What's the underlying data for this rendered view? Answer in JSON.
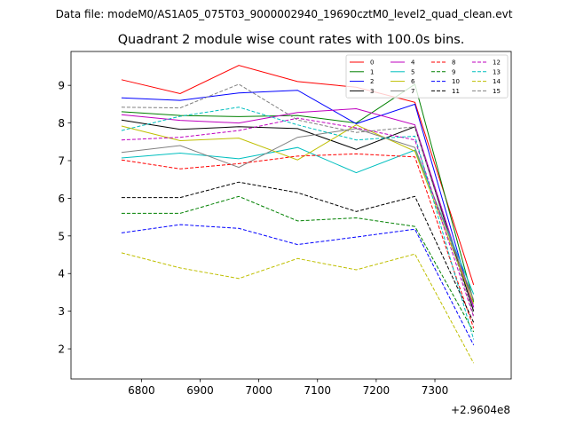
{
  "suptitle": "Data file: modeM0/AS1A05_075T03_9000002940_19690cztM0_level2_quad_clean.evt",
  "chart_data": {
    "type": "line",
    "title": "Quadrant 2 module wise count rates with 100.0s bins.",
    "xlabel": "",
    "ylabel": "",
    "x_offset_label": "+2.9604e8",
    "x": [
      6766,
      6866,
      6966,
      7066,
      7166,
      7266,
      7366
    ],
    "xlim": [
      6680,
      7430
    ],
    "ylim": [
      1.2,
      9.9
    ],
    "xticks": [
      6800,
      6900,
      7000,
      7100,
      7200,
      7300
    ],
    "yticks": [
      2,
      3,
      4,
      5,
      6,
      7,
      8,
      9
    ],
    "legend_placement": "top-right",
    "legend_ncol": 4,
    "series": [
      {
        "name": "0",
        "color": "#ff0000",
        "dashed": false,
        "values": [
          9.15,
          8.78,
          9.53,
          9.1,
          8.95,
          8.55,
          3.7
        ]
      },
      {
        "name": "1",
        "color": "#008000",
        "dashed": false,
        "values": [
          8.3,
          8.2,
          8.17,
          8.2,
          8.0,
          9.03,
          3.25
        ]
      },
      {
        "name": "2",
        "color": "#0000ff",
        "dashed": false,
        "values": [
          8.67,
          8.6,
          8.8,
          8.87,
          7.98,
          8.5,
          3.1
        ]
      },
      {
        "name": "3",
        "color": "#000000",
        "dashed": false,
        "values": [
          8.08,
          7.83,
          7.9,
          7.85,
          7.3,
          7.9,
          3.0
        ]
      },
      {
        "name": "4",
        "color": "#bf00bf",
        "dashed": false,
        "values": [
          8.22,
          8.07,
          8.0,
          8.28,
          8.38,
          7.95,
          3.1
        ]
      },
      {
        "name": "5",
        "color": "#00bfbf",
        "dashed": false,
        "values": [
          7.07,
          7.2,
          7.05,
          7.35,
          6.68,
          7.28,
          3.45
        ]
      },
      {
        "name": "6",
        "color": "#bfbf00",
        "dashed": false,
        "values": [
          7.92,
          7.53,
          7.6,
          7.02,
          7.95,
          7.25,
          3.2
        ]
      },
      {
        "name": "7",
        "color": "#808080",
        "dashed": false,
        "values": [
          7.22,
          7.4,
          6.82,
          7.62,
          7.85,
          7.35,
          3.3
        ]
      },
      {
        "name": "8",
        "color": "#ff0000",
        "dashed": true,
        "values": [
          7.02,
          6.78,
          6.92,
          7.12,
          7.18,
          7.1,
          2.55
        ]
      },
      {
        "name": "9",
        "color": "#008000",
        "dashed": true,
        "values": [
          5.6,
          5.6,
          6.05,
          5.4,
          5.48,
          5.25,
          2.45
        ]
      },
      {
        "name": "10",
        "color": "#0000ff",
        "dashed": true,
        "values": [
          5.08,
          5.3,
          5.2,
          4.77,
          4.97,
          5.18,
          2.1
        ]
      },
      {
        "name": "11",
        "color": "#000000",
        "dashed": true,
        "values": [
          6.02,
          6.02,
          6.43,
          6.15,
          5.65,
          6.05,
          2.7
        ]
      },
      {
        "name": "12",
        "color": "#bf00bf",
        "dashed": true,
        "values": [
          7.55,
          7.62,
          7.8,
          8.13,
          7.87,
          7.55,
          2.85
        ]
      },
      {
        "name": "13",
        "color": "#00bfbf",
        "dashed": true,
        "values": [
          7.8,
          8.18,
          8.42,
          7.95,
          7.55,
          7.65,
          2.25
        ]
      },
      {
        "name": "14",
        "color": "#bfbf00",
        "dashed": true,
        "values": [
          4.55,
          4.15,
          3.87,
          4.4,
          4.1,
          4.52,
          1.62
        ]
      },
      {
        "name": "15",
        "color": "#808080",
        "dashed": true,
        "values": [
          8.42,
          8.4,
          9.03,
          8.08,
          7.75,
          7.9,
          2.9
        ]
      }
    ]
  }
}
